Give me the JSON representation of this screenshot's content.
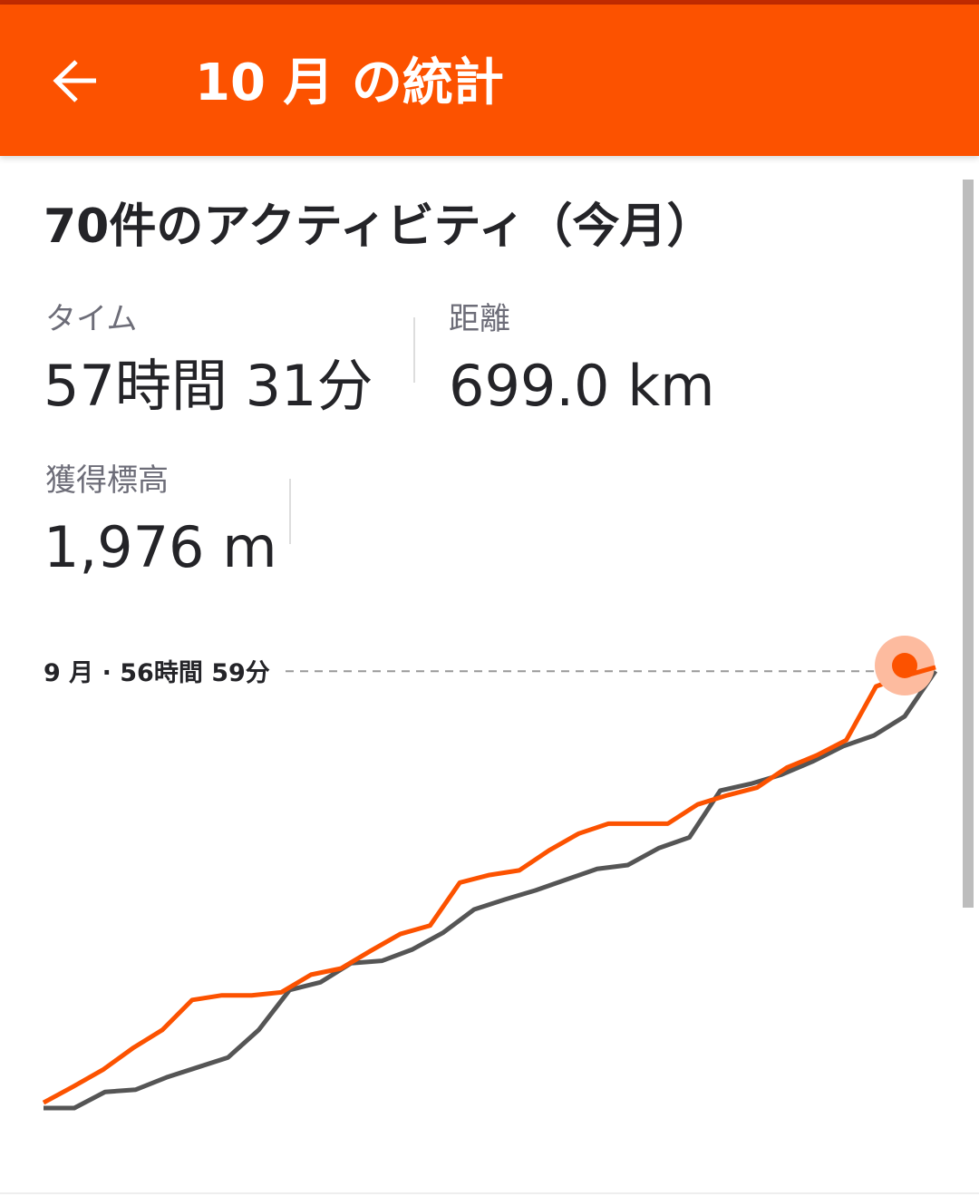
{
  "header": {
    "title": "10 月 の統計",
    "back_icon": "arrow-left-icon"
  },
  "summary": {
    "heading": "70件のアクティビティ（今月）"
  },
  "stats": [
    {
      "label": "タイム",
      "value": "57時間 31分"
    },
    {
      "label": "距離",
      "value": "699.0 km"
    },
    {
      "label": "獲得標高",
      "value": "1,976 m"
    }
  ],
  "colors": {
    "brand": "#FC5200",
    "previous": "#555555",
    "marker_halo": "#FDBB9F"
  },
  "chart_data": {
    "type": "line",
    "reference_label": "9 月 · 56時間 59分",
    "reference_value": 56.98,
    "ylim": [
      0,
      57.6
    ],
    "grid": false,
    "series": [
      {
        "color": "#FC5200",
        "values": [
          0.7,
          2.8,
          5.0,
          7.8,
          10.2,
          14.1,
          14.7,
          14.7,
          15.1,
          17.4,
          18.2,
          20.5,
          22.7,
          23.8,
          29.4,
          30.4,
          31.0,
          33.6,
          35.8,
          37.1,
          37.1,
          37.1,
          39.6,
          40.8,
          41.8,
          44.4,
          46.0,
          48.0,
          55.0,
          56.4,
          57.5
        ]
      },
      {
        "color": "#555555",
        "values": [
          0,
          0,
          2.1,
          2.4,
          4.0,
          5.3,
          6.6,
          10.2,
          15.4,
          16.4,
          18.9,
          19.2,
          20.7,
          22.9,
          25.9,
          27.2,
          28.4,
          29.8,
          31.2,
          31.7,
          33.9,
          35.3,
          41.4,
          42.3,
          43.5,
          45.2,
          47.2,
          48.6,
          51.1,
          57.0
        ]
      }
    ]
  }
}
